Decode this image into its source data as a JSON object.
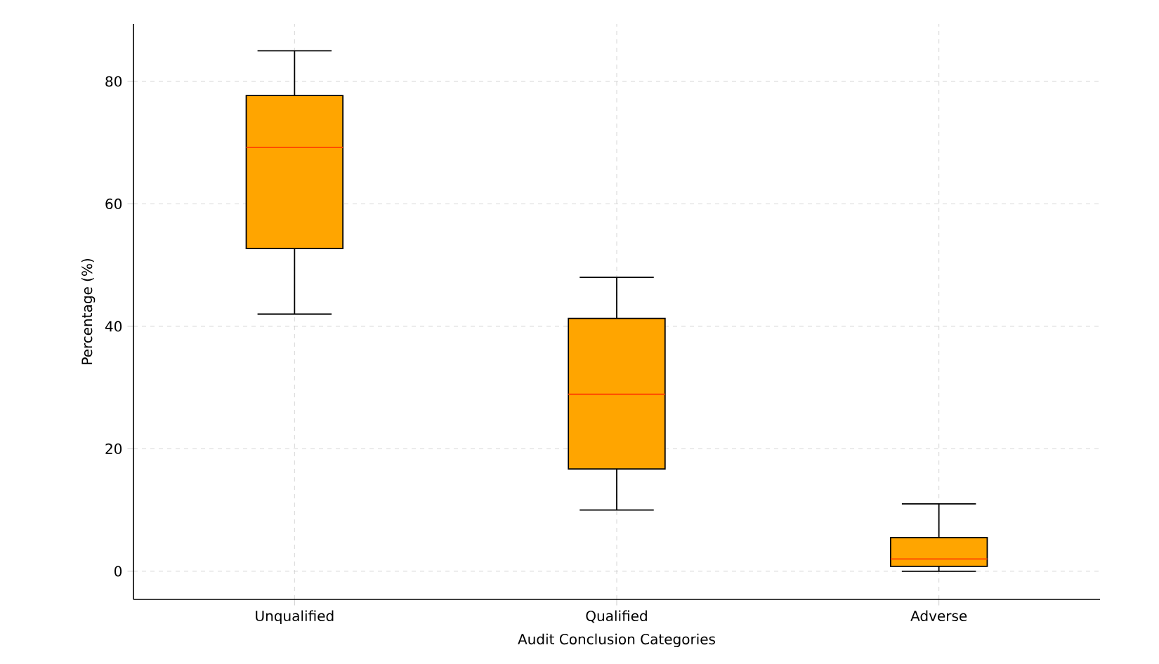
{
  "chart_data": {
    "type": "box",
    "xlabel": "Audit Conclusion Categories",
    "ylabel": "Percentage (%)",
    "categories": [
      "Unqualified",
      "Qualified",
      "Adverse"
    ],
    "boxes": [
      {
        "low": 42,
        "q1": 52.7,
        "median": 69.2,
        "q3": 77.7,
        "high": 85
      },
      {
        "low": 10,
        "q1": 16.7,
        "median": 28.9,
        "q3": 41.3,
        "high": 48
      },
      {
        "low": 0,
        "q1": 0.8,
        "median": 2,
        "q3": 5.5,
        "high": 11
      }
    ],
    "color": "#ffa500",
    "ylim": [
      -4.6,
      89.4
    ],
    "yticks": [
      0,
      20,
      40,
      60,
      80
    ],
    "grid": true
  }
}
